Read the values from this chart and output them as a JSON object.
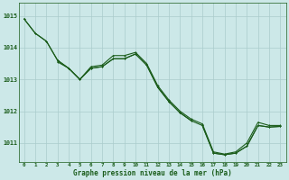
{
  "bg_color": "#cce8e8",
  "grid_color": "#aacccc",
  "line_color": "#1a5c1a",
  "xlabel": "Graphe pression niveau de la mer (hPa)",
  "ylim": [
    1010.4,
    1015.4
  ],
  "xlim": [
    -0.5,
    23.5
  ],
  "yticks": [
    1011,
    1012,
    1013,
    1014,
    1015
  ],
  "xticks": [
    0,
    1,
    2,
    3,
    4,
    5,
    6,
    7,
    8,
    9,
    10,
    11,
    12,
    13,
    14,
    15,
    16,
    17,
    18,
    19,
    20,
    21,
    22,
    23
  ],
  "series2": {
    "x": [
      0,
      1,
      2,
      3,
      4,
      5,
      6,
      7,
      8,
      9,
      10,
      11,
      12,
      13,
      14,
      15,
      16,
      17,
      18,
      19,
      20,
      21,
      22,
      23
    ],
    "line1": [
      1014.9,
      1014.45,
      1014.2,
      1013.6,
      1013.35,
      1013.0,
      1013.4,
      1013.45,
      1013.75,
      1013.75,
      1013.85,
      1013.5,
      1012.8,
      1012.35,
      1012.0,
      1011.75,
      1011.6,
      1010.72,
      1010.65,
      1010.72,
      1011.0,
      1011.65,
      1011.55,
      1011.55
    ],
    "line2": [
      null,
      null,
      null,
      1013.55,
      1013.35,
      1013.0,
      1013.35,
      1013.4,
      1013.65,
      1013.65,
      1013.8,
      1013.45,
      1012.75,
      1012.3,
      1011.95,
      1011.7,
      null,
      null,
      null,
      null,
      null,
      null,
      null,
      null
    ],
    "line3": [
      null,
      null,
      null,
      null,
      null,
      null,
      null,
      null,
      null,
      null,
      null,
      null,
      null,
      null,
      null,
      null,
      1011.55,
      1010.68,
      1010.63,
      1010.68,
      1010.9,
      1011.55,
      1011.5,
      1011.52
    ],
    "line4": [
      1014.9,
      1014.45,
      1014.2,
      1013.6,
      1013.35,
      1013.0,
      1013.35,
      1013.4,
      1013.65,
      1013.65,
      1013.8,
      1013.45,
      1012.75,
      1012.3,
      1011.95,
      1011.7,
      1011.55,
      1010.68,
      1010.63,
      1010.68,
      1010.9,
      1011.55,
      1011.5,
      1011.52
    ]
  },
  "marker_size": 2.0,
  "line_width": 0.8
}
